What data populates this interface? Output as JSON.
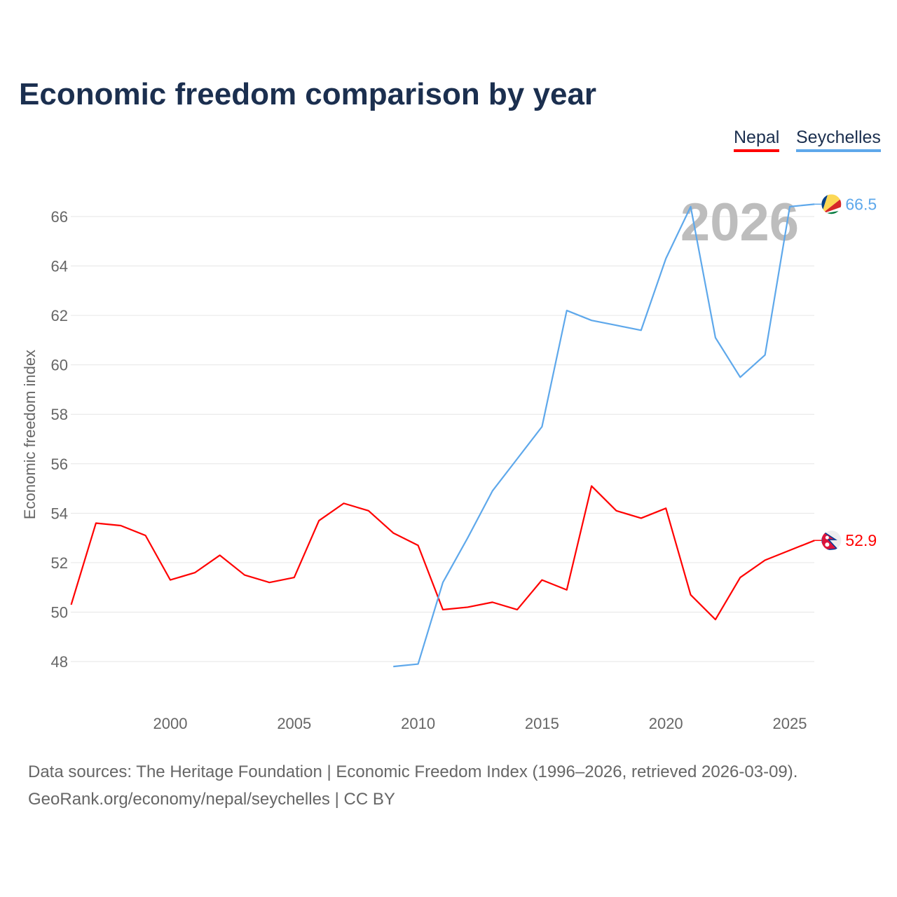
{
  "chart_data": {
    "type": "line",
    "title": "Economic freedom comparison by year",
    "xlabel": "",
    "ylabel": "Economic freedom index",
    "xlim": [
      1996,
      2026
    ],
    "ylim": [
      46.2,
      67.5
    ],
    "x_ticks": [
      2000,
      2005,
      2010,
      2015,
      2020,
      2025
    ],
    "y_ticks": [
      48,
      50,
      52,
      54,
      56,
      58,
      60,
      62,
      64,
      66
    ],
    "grid": true,
    "legend_position": "top-right",
    "year_watermark": "2026",
    "series": [
      {
        "name": "Nepal",
        "color": "#ff0000",
        "end_label": "52.9",
        "x": [
          1996,
          1997,
          1998,
          1999,
          2000,
          2001,
          2002,
          2003,
          2004,
          2005,
          2006,
          2007,
          2008,
          2009,
          2010,
          2011,
          2012,
          2013,
          2014,
          2015,
          2016,
          2017,
          2018,
          2019,
          2020,
          2021,
          2022,
          2023,
          2024,
          2025,
          2026
        ],
        "values": [
          50.3,
          53.6,
          53.5,
          53.1,
          51.3,
          51.6,
          52.3,
          51.5,
          51.2,
          51.4,
          53.7,
          54.4,
          54.1,
          53.2,
          52.7,
          50.1,
          50.2,
          50.4,
          50.1,
          51.3,
          50.9,
          55.1,
          54.1,
          53.8,
          54.2,
          50.7,
          49.7,
          51.4,
          52.1,
          52.5,
          52.9
        ]
      },
      {
        "name": "Seychelles",
        "color": "#5ea8eb",
        "end_label": "66.5",
        "x": [
          2009,
          2010,
          2011,
          2012,
          2013,
          2014,
          2015,
          2016,
          2017,
          2018,
          2019,
          2020,
          2021,
          2022,
          2023,
          2024,
          2025,
          2026
        ],
        "values": [
          47.8,
          47.9,
          51.2,
          53.0,
          54.9,
          56.2,
          57.5,
          62.2,
          61.8,
          61.6,
          61.4,
          64.3,
          66.4,
          61.1,
          59.5,
          60.4,
          66.4,
          66.5
        ]
      }
    ]
  },
  "footer": {
    "line1": "Data sources: The Heritage Foundation | Economic Freedom Index (1996–2026, retrieved 2026-03-09).",
    "line2": "GeoRank.org/economy/nepal/seychelles | CC BY"
  }
}
